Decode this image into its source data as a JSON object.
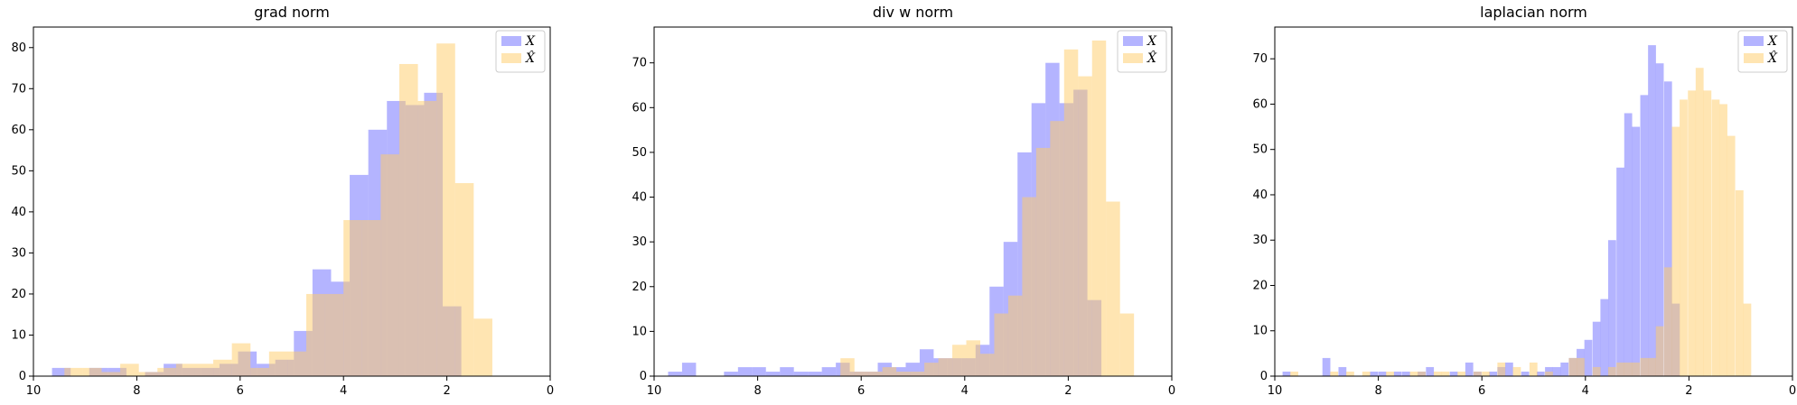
{
  "colors": {
    "X": "#7777ff",
    "Xhat": "#ffcc66"
  },
  "chart_data": [
    {
      "type": "histogram",
      "title": "grad norm",
      "xlim": [
        10,
        0
      ],
      "ylim": [
        0,
        85
      ],
      "xticks": [
        10,
        8,
        6,
        4,
        2,
        0
      ],
      "yticks": [
        0,
        10,
        20,
        30,
        40,
        50,
        60,
        70,
        80
      ],
      "legend_position": "top-right",
      "legend": [
        "X",
        "X̂"
      ],
      "series": [
        {
          "name": "X",
          "bin_width": 0.36,
          "bins": [
            [
              9.64,
              2
            ],
            [
              9.28,
              0
            ],
            [
              8.92,
              2
            ],
            [
              8.56,
              2
            ],
            [
              8.2,
              0
            ],
            [
              7.84,
              1
            ],
            [
              7.48,
              3
            ],
            [
              7.12,
              2
            ],
            [
              6.76,
              2
            ],
            [
              6.4,
              3
            ],
            [
              6.04,
              6
            ],
            [
              5.68,
              3
            ],
            [
              5.32,
              4
            ],
            [
              4.96,
              11
            ],
            [
              4.6,
              26
            ],
            [
              4.24,
              23
            ],
            [
              3.88,
              49
            ],
            [
              3.52,
              60
            ],
            [
              3.16,
              67
            ],
            [
              2.8,
              66
            ],
            [
              2.44,
              69
            ],
            [
              2.08,
              17
            ]
          ]
        },
        {
          "name": "X̂",
          "bin_width": 0.36,
          "bins": [
            [
              9.4,
              2
            ],
            [
              9.04,
              2
            ],
            [
              8.68,
              1
            ],
            [
              8.32,
              3
            ],
            [
              7.96,
              1
            ],
            [
              7.6,
              2
            ],
            [
              7.24,
              3
            ],
            [
              6.88,
              3
            ],
            [
              6.52,
              4
            ],
            [
              6.16,
              8
            ],
            [
              5.8,
              2
            ],
            [
              5.44,
              6
            ],
            [
              5.08,
              6
            ],
            [
              4.72,
              20
            ],
            [
              4.36,
              20
            ],
            [
              4.0,
              38
            ],
            [
              3.64,
              38
            ],
            [
              3.28,
              54
            ],
            [
              2.92,
              76
            ],
            [
              2.56,
              67
            ],
            [
              2.2,
              81
            ],
            [
              1.84,
              47
            ],
            [
              1.48,
              14
            ]
          ]
        }
      ]
    },
    {
      "type": "histogram",
      "title": "div w norm",
      "xlim": [
        10,
        0
      ],
      "ylim": [
        0,
        78
      ],
      "xticks": [
        10,
        8,
        6,
        4,
        2,
        0
      ],
      "yticks": [
        0,
        10,
        20,
        30,
        40,
        50,
        60,
        70
      ],
      "legend_position": "top-right",
      "legend": [
        "X",
        "X̂"
      ],
      "series": [
        {
          "name": "X",
          "bin_width": 0.27,
          "bins": [
            [
              9.73,
              1
            ],
            [
              9.46,
              3
            ],
            [
              8.65,
              1
            ],
            [
              8.38,
              2
            ],
            [
              8.11,
              2
            ],
            [
              7.84,
              1
            ],
            [
              7.57,
              2
            ],
            [
              7.3,
              1
            ],
            [
              7.03,
              1
            ],
            [
              6.76,
              2
            ],
            [
              6.49,
              3
            ],
            [
              6.22,
              1
            ],
            [
              5.95,
              1
            ],
            [
              5.68,
              3
            ],
            [
              5.41,
              2
            ],
            [
              5.14,
              3
            ],
            [
              4.87,
              6
            ],
            [
              4.6,
              4
            ],
            [
              4.33,
              4
            ],
            [
              4.06,
              4
            ],
            [
              3.79,
              7
            ],
            [
              3.52,
              20
            ],
            [
              3.25,
              30
            ],
            [
              2.98,
              50
            ],
            [
              2.71,
              61
            ],
            [
              2.44,
              70
            ],
            [
              2.17,
              61
            ],
            [
              1.9,
              64
            ],
            [
              1.63,
              17
            ]
          ]
        },
        {
          "name": "X̂",
          "bin_width": 0.27,
          "bins": [
            [
              6.4,
              4
            ],
            [
              6.13,
              1
            ],
            [
              5.86,
              1
            ],
            [
              5.59,
              2
            ],
            [
              5.32,
              1
            ],
            [
              5.05,
              1
            ],
            [
              4.78,
              3
            ],
            [
              4.51,
              4
            ],
            [
              4.24,
              7
            ],
            [
              3.97,
              8
            ],
            [
              3.7,
              5
            ],
            [
              3.43,
              14
            ],
            [
              3.16,
              18
            ],
            [
              2.89,
              40
            ],
            [
              2.62,
              51
            ],
            [
              2.35,
              57
            ],
            [
              2.08,
              73
            ],
            [
              1.81,
              67
            ],
            [
              1.54,
              75
            ],
            [
              1.27,
              39
            ],
            [
              1.0,
              14
            ]
          ]
        }
      ]
    },
    {
      "type": "histogram",
      "title": "laplacian norm",
      "xlim": [
        10,
        0
      ],
      "ylim": [
        0,
        77
      ],
      "xticks": [
        10,
        8,
        6,
        4,
        2,
        0
      ],
      "yticks": [
        0,
        10,
        20,
        30,
        40,
        50,
        60,
        70
      ],
      "legend_position": "top-right",
      "legend": [
        "X",
        "X̂"
      ],
      "series": [
        {
          "name": "X",
          "bin_width": 0.153,
          "bins": [
            [
              9.85,
              1
            ],
            [
              9.08,
              4
            ],
            [
              8.77,
              2
            ],
            [
              8.16,
              1
            ],
            [
              8.0,
              1
            ],
            [
              7.7,
              1
            ],
            [
              7.54,
              1
            ],
            [
              7.24,
              1
            ],
            [
              7.08,
              2
            ],
            [
              6.62,
              1
            ],
            [
              6.32,
              3
            ],
            [
              6.16,
              1
            ],
            [
              5.86,
              1
            ],
            [
              5.7,
              2
            ],
            [
              5.55,
              3
            ],
            [
              5.24,
              1
            ],
            [
              4.94,
              1
            ],
            [
              4.78,
              2
            ],
            [
              4.63,
              2
            ],
            [
              4.48,
              3
            ],
            [
              4.32,
              4
            ],
            [
              4.17,
              6
            ],
            [
              4.02,
              8
            ],
            [
              3.86,
              12
            ],
            [
              3.71,
              17
            ],
            [
              3.56,
              30
            ],
            [
              3.4,
              46
            ],
            [
              3.25,
              58
            ],
            [
              3.1,
              55
            ],
            [
              2.94,
              62
            ],
            [
              2.79,
              73
            ],
            [
              2.64,
              69
            ],
            [
              2.48,
              65
            ],
            [
              2.33,
              16
            ]
          ]
        },
        {
          "name": "X̂",
          "bin_width": 0.153,
          "bins": [
            [
              9.7,
              1
            ],
            [
              8.93,
              1
            ],
            [
              8.62,
              1
            ],
            [
              8.31,
              1
            ],
            [
              7.85,
              1
            ],
            [
              7.39,
              1
            ],
            [
              7.24,
              1
            ],
            [
              6.93,
              1
            ],
            [
              6.78,
              1
            ],
            [
              6.47,
              1
            ],
            [
              6.16,
              1
            ],
            [
              6.0,
              1
            ],
            [
              5.7,
              3
            ],
            [
              5.4,
              2
            ],
            [
              5.08,
              3
            ],
            [
              4.78,
              1
            ],
            [
              4.32,
              4
            ],
            [
              4.17,
              4
            ],
            [
              3.86,
              2
            ],
            [
              3.56,
              2
            ],
            [
              3.4,
              3
            ],
            [
              3.25,
              3
            ],
            [
              3.1,
              3
            ],
            [
              2.94,
              4
            ],
            [
              2.79,
              4
            ],
            [
              2.64,
              11
            ],
            [
              2.48,
              24
            ],
            [
              2.33,
              55
            ],
            [
              2.18,
              61
            ],
            [
              2.02,
              63
            ],
            [
              1.87,
              68
            ],
            [
              1.72,
              63
            ],
            [
              1.56,
              61
            ],
            [
              1.41,
              60
            ],
            [
              1.26,
              53
            ],
            [
              1.1,
              41
            ],
            [
              0.95,
              16
            ]
          ]
        }
      ]
    }
  ]
}
